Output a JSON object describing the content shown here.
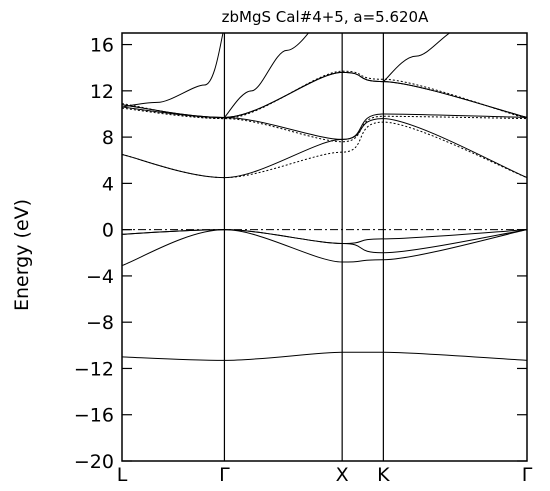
{
  "chart_data": {
    "type": "line",
    "title": "zbMgS  Cal#4+5,  a=5.620A",
    "ylabel": "Energy (eV)",
    "xlabel": "",
    "ylim": [
      -20,
      17
    ],
    "yticks": [
      -20,
      -16,
      -12,
      -8,
      -4,
      0,
      4,
      8,
      12,
      16
    ],
    "ytick_labels": [
      "−20",
      "−16",
      "−12",
      "−8",
      "−4",
      "0",
      "4",
      "8",
      "12",
      "16"
    ],
    "xlim": [
      0,
      3.44
    ],
    "kpoints": [
      {
        "label": "L",
        "x": 0
      },
      {
        "label": "Γ",
        "x": 0.87
      },
      {
        "label": "X",
        "x": 1.87
      },
      {
        "label": "K",
        "x": 2.22
      },
      {
        "label": "Γ",
        "x": 3.44
      }
    ],
    "fermi_level": 0,
    "grid": false,
    "series": [
      {
        "style": "solid",
        "x": [
          0,
          0.87,
          1.87,
          2.22,
          3.44
        ],
        "y": [
          -11.0,
          -11.3,
          -10.6,
          -10.6,
          -11.3
        ]
      },
      {
        "style": "solid",
        "x": [
          0,
          0.87,
          1.87,
          2.22,
          3.44
        ],
        "y": [
          -3.1,
          0.0,
          -2.8,
          -2.6,
          0.0
        ]
      },
      {
        "style": "solid",
        "x": [
          0,
          0.87,
          1.87,
          2.22,
          3.44
        ],
        "y": [
          -0.4,
          0.0,
          -1.2,
          -2.0,
          0.0
        ]
      },
      {
        "style": "solid",
        "x": [
          0,
          0.87,
          1.87,
          2.22,
          3.44
        ],
        "y": [
          -0.4,
          0.0,
          -1.2,
          -0.8,
          0.0
        ]
      },
      {
        "style": "solid",
        "x": [
          0,
          0.87,
          1.87,
          2.22,
          3.44
        ],
        "y": [
          6.5,
          4.5,
          7.8,
          9.6,
          4.5
        ]
      },
      {
        "style": "solid",
        "x": [
          0,
          0.87,
          1.87,
          2.22,
          3.44
        ],
        "y": [
          10.6,
          9.7,
          7.8,
          10.0,
          9.7
        ]
      },
      {
        "style": "solid",
        "x": [
          0,
          0.87,
          1.87,
          2.22,
          3.44
        ],
        "y": [
          10.8,
          9.7,
          13.6,
          12.8,
          9.7
        ]
      },
      {
        "style": "solid",
        "x": [
          0,
          0.87,
          1.87,
          2.22,
          3.44
        ],
        "y": [
          10.8,
          9.7,
          13.6,
          12.8,
          9.7
        ]
      },
      {
        "style": "dotted",
        "x": [
          0,
          0.87,
          1.87,
          2.22,
          3.44
        ],
        "y": [
          6.5,
          4.5,
          6.7,
          9.3,
          4.5
        ]
      },
      {
        "style": "dotted",
        "x": [
          0,
          0.87,
          1.87,
          2.22,
          3.44
        ],
        "y": [
          10.5,
          9.6,
          7.6,
          9.8,
          9.6
        ]
      },
      {
        "style": "dotted",
        "x": [
          0,
          0.87,
          1.87,
          2.22,
          3.44
        ],
        "y": [
          10.9,
          9.6,
          13.7,
          13.0,
          9.6
        ]
      },
      {
        "style": "solid",
        "x": [
          0.87,
          1.1,
          1.4,
          1.7
        ],
        "y": [
          9.7,
          12.0,
          15.5,
          18.5
        ]
      },
      {
        "style": "solid",
        "x": [
          2.22,
          2.5,
          2.9,
          3.3
        ],
        "y": [
          12.8,
          15.0,
          17.5,
          19.5
        ]
      },
      {
        "style": "solid",
        "x": [
          0,
          0.3,
          0.7,
          0.87
        ],
        "y": [
          10.6,
          11.0,
          12.5,
          17.5
        ]
      }
    ]
  }
}
